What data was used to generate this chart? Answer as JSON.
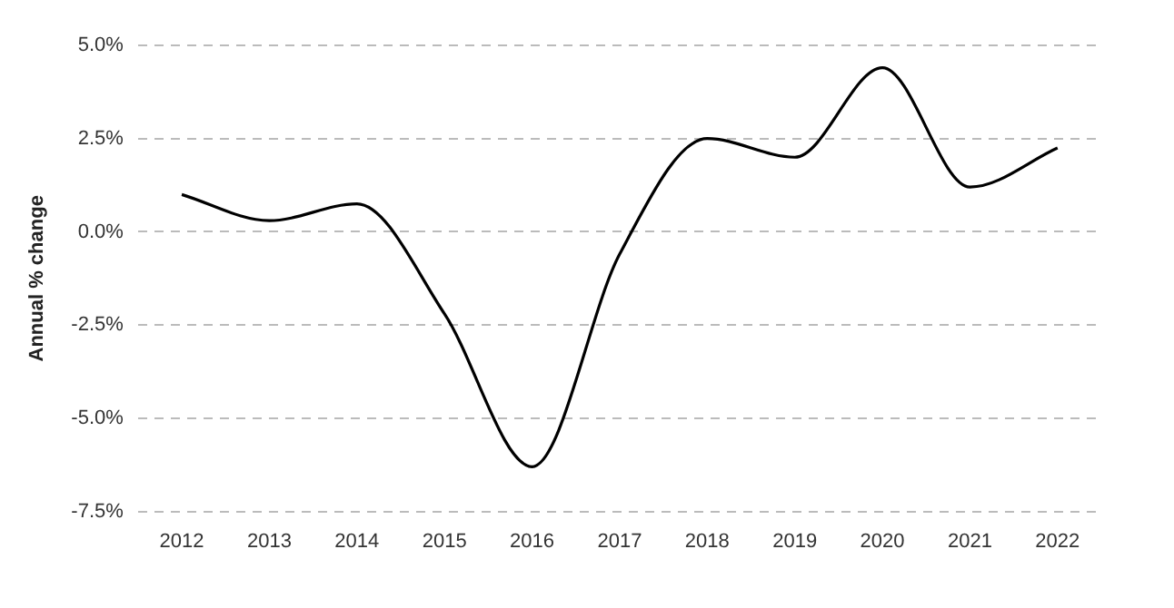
{
  "chart_data": {
    "type": "line",
    "ylabel": "Annual % change",
    "categories": [
      "2012",
      "2013",
      "2014",
      "2015",
      "2016",
      "2017",
      "2018",
      "2019",
      "2020",
      "2021",
      "2022"
    ],
    "series": [
      {
        "color": "#000000",
        "values": [
          1.0,
          0.3,
          0.75,
          -2.2,
          -6.3,
          -0.6,
          2.5,
          2.0,
          4.4,
          1.2,
          2.25
        ]
      }
    ],
    "ylim": [
      -7.5,
      5.0
    ],
    "yticks": [
      {
        "value": -7.5,
        "label": "-7.5%"
      },
      {
        "value": -5.0,
        "label": "-5.0%"
      },
      {
        "value": -2.5,
        "label": "-2.5%"
      },
      {
        "value": 0,
        "label": "0.0%"
      },
      {
        "value": 2.5,
        "label": "2.5%"
      },
      {
        "value": 5.0,
        "label": "5.0%"
      }
    ],
    "grid": "y",
    "legend": false
  }
}
